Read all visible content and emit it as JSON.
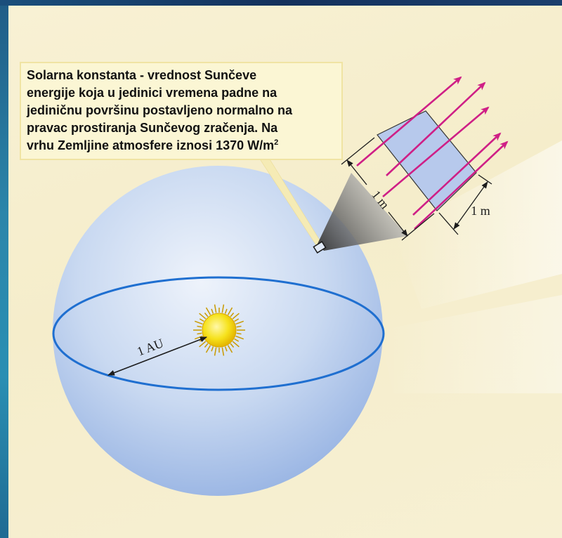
{
  "description_box": {
    "lines": [
      "Solarna konstanta - vrednost Sunčeve",
      "energije koja u jedinici vremena padne na",
      "jediničnu površinu postavljeno normalno na",
      "pravac prostiranja Sunčevog zračenja. Na"
    ],
    "last_line": "vrhu Zemljine atmosfere iznosi 1370 W/m",
    "last_line_superscript": "2"
  },
  "labels": {
    "distance": "1 AU",
    "panel_side_left": "1 m",
    "panel_side_right": "1 m"
  },
  "colors": {
    "background": "#f6efcf",
    "sphere": "#c9d9f1",
    "orbit": "#1f6fd0",
    "sun": "#f6e21c",
    "radiation_arrows": "#cf1f86",
    "panel": "#b4c8ee",
    "frame": "#2b86aa"
  },
  "icons": {
    "sun": "sun-icon"
  }
}
